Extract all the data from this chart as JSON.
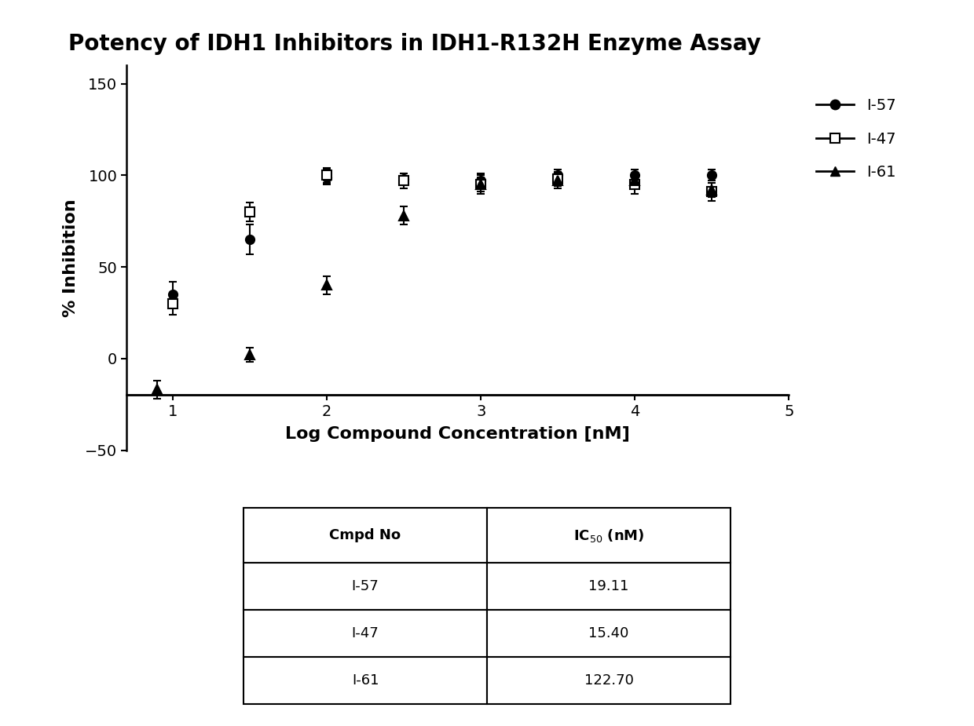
{
  "title": "Potency of IDH1 Inhibitors in IDH1-R132H Enzyme Assay",
  "xlabel": "Log Compound Concentration [nM]",
  "ylabel": "% Inhibition",
  "xlim": [
    0.7,
    5.0
  ],
  "ylim": [
    -50,
    160
  ],
  "yticks": [
    -50,
    0,
    50,
    100,
    150
  ],
  "xticks": [
    1,
    2,
    3,
    4,
    5
  ],
  "background_color": "#ffffff",
  "I57_x": [
    1.0,
    1.5,
    2.0,
    2.5,
    3.0,
    3.5,
    4.0,
    4.5
  ],
  "I57_y": [
    35,
    65,
    99,
    98,
    97,
    100,
    100,
    100
  ],
  "I57_err": [
    7,
    8,
    4,
    3,
    4,
    3,
    3,
    3
  ],
  "I57_ic50": 19.11,
  "I47_x": [
    1.0,
    1.5,
    2.0,
    2.5,
    3.0,
    3.5,
    4.0,
    4.5
  ],
  "I47_y": [
    30,
    80,
    100,
    97,
    95,
    98,
    95,
    91
  ],
  "I47_err": [
    6,
    5,
    4,
    4,
    5,
    4,
    5,
    5
  ],
  "I47_ic50": 15.4,
  "I61_x": [
    0.9,
    1.5,
    2.0,
    2.5,
    3.0,
    3.5,
    4.0,
    4.5
  ],
  "I61_y": [
    -17,
    2,
    40,
    78,
    95,
    97,
    97,
    92
  ],
  "I61_err": [
    5,
    4,
    5,
    5,
    4,
    4,
    4,
    4
  ],
  "I61_ic50": 122.7,
  "hline_y": -20,
  "title_fontsize": 20,
  "axis_fontsize": 16,
  "tick_fontsize": 14,
  "legend_fontsize": 14,
  "table_fontsize": 13,
  "table_header_fontsize": 13,
  "compounds": [
    "I-57",
    "I-47",
    "I-61"
  ],
  "ic50_vals": [
    "19.11",
    "15.40",
    "122.70"
  ]
}
